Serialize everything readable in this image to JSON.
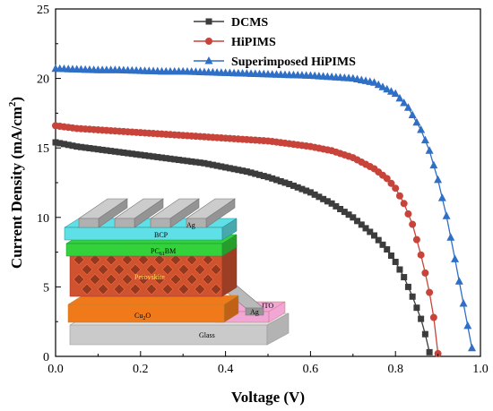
{
  "chart_data": {
    "type": "line",
    "xlabel": "Voltage (V)",
    "ylabel_main": "Current Density (mA/cm",
    "ylabel_sup": "2",
    "ylabel_end": ")",
    "xlim": [
      0,
      1.0
    ],
    "ylim": [
      0,
      25
    ],
    "x_ticks": [
      "0.0",
      "0.2",
      "0.4",
      "0.6",
      "0.8",
      "1.0"
    ],
    "y_ticks": [
      "0",
      "5",
      "10",
      "15",
      "20",
      "25"
    ],
    "grid": false,
    "legend_placement": "top-right",
    "series": [
      {
        "name": "DCMS",
        "color": "#3c3c3c",
        "marker": "square",
        "x": [
          0.0,
          0.05,
          0.1,
          0.15,
          0.2,
          0.25,
          0.3,
          0.35,
          0.4,
          0.45,
          0.5,
          0.55,
          0.6,
          0.65,
          0.7,
          0.75,
          0.78,
          0.8,
          0.82,
          0.84,
          0.86,
          0.87,
          0.88
        ],
        "y": [
          15.4,
          15.1,
          14.9,
          14.7,
          14.5,
          14.3,
          14.1,
          13.9,
          13.6,
          13.3,
          12.9,
          12.4,
          11.8,
          11.0,
          10.0,
          8.7,
          7.7,
          6.8,
          5.7,
          4.3,
          2.7,
          1.6,
          0.3
        ]
      },
      {
        "name": "HiPIMS",
        "color": "#c8443a",
        "marker": "circle",
        "x": [
          0.0,
          0.05,
          0.1,
          0.15,
          0.2,
          0.25,
          0.3,
          0.35,
          0.4,
          0.45,
          0.5,
          0.55,
          0.6,
          0.65,
          0.7,
          0.75,
          0.78,
          0.8,
          0.82,
          0.84,
          0.86,
          0.87,
          0.88,
          0.89,
          0.9
        ],
        "y": [
          16.6,
          16.4,
          16.3,
          16.2,
          16.1,
          16.0,
          15.9,
          15.8,
          15.7,
          15.6,
          15.5,
          15.3,
          15.1,
          14.8,
          14.3,
          13.5,
          12.8,
          12.1,
          11.0,
          9.5,
          7.3,
          6.0,
          4.6,
          2.8,
          0.2
        ]
      },
      {
        "name": "Superimposed HiPIMS",
        "color": "#2f6fc6",
        "marker": "triangle",
        "x": [
          0.0,
          0.05,
          0.1,
          0.15,
          0.2,
          0.25,
          0.3,
          0.35,
          0.4,
          0.45,
          0.5,
          0.55,
          0.6,
          0.65,
          0.7,
          0.75,
          0.8,
          0.83,
          0.86,
          0.88,
          0.9,
          0.92,
          0.94,
          0.96,
          0.98
        ],
        "y": [
          20.7,
          20.65,
          20.6,
          20.6,
          20.55,
          20.5,
          20.5,
          20.45,
          20.4,
          20.35,
          20.3,
          20.25,
          20.2,
          20.1,
          20.0,
          19.7,
          18.9,
          17.9,
          16.3,
          14.8,
          12.7,
          10.1,
          7.0,
          3.8,
          0.6
        ]
      }
    ]
  },
  "inset": {
    "labels": {
      "ag_top": "Ag",
      "bcp": "BCP",
      "pcbm": "PC",
      "pcbm_sub": "61",
      "pcbm_end": "BM",
      "perovskite": "Perovskite",
      "cu2o": "Cu",
      "cu2o_sub": "2",
      "cu2o_end": "O",
      "ag_side": "Ag",
      "ito": "ITO",
      "glass": "Glass"
    },
    "colors": {
      "glass": "#e0e0e0",
      "ito": "#f2a6d6",
      "cu2o": "#f07a1a",
      "perovskite": "#d0532f",
      "pcbm": "#33d23a",
      "bcp": "#5fe0e6",
      "ag": "#b9b9b9"
    }
  }
}
